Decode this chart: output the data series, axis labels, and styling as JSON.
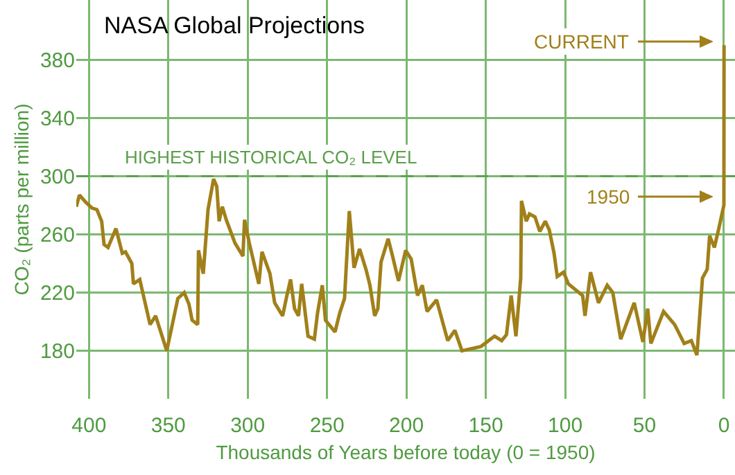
{
  "chart_data": {
    "type": "line",
    "title": "NASA Global Projections",
    "xlabel": "Thousands of Years before today (0 = 1950)",
    "ylabel": "CO₂ (parts per million)",
    "xlim": [
      408,
      -7
    ],
    "xticks": [
      400,
      350,
      300,
      250,
      200,
      150,
      100,
      50,
      0
    ],
    "ylim": [
      147,
      421
    ],
    "yticks": [
      180,
      220,
      260,
      300,
      340,
      380
    ],
    "grid": true,
    "marker": "none",
    "line_style": "solid",
    "series": [
      {
        "color": "#a1801a",
        "x": [
          408,
          406,
          402,
          398,
          395,
          392,
          390.5,
          388,
          383,
          379,
          377,
          373,
          372,
          368,
          361.5,
          358,
          351,
          344,
          340,
          337,
          335,
          331.5,
          331,
          328,
          325,
          321.5,
          319.5,
          318,
          316,
          313.5,
          308,
          303,
          302,
          299,
          293,
          291,
          286,
          283,
          278,
          275.5,
          273,
          270.5,
          268,
          266,
          262,
          258,
          256,
          253,
          251,
          245,
          242,
          239,
          236,
          233,
          229.5,
          225.5,
          223,
          220,
          218,
          216,
          211.5,
          208.5,
          205,
          200.5,
          197,
          193,
          190,
          187,
          181,
          174,
          169.5,
          165,
          153,
          144.5,
          140,
          137,
          134,
          131,
          128,
          127.5,
          124.5,
          122.5,
          119,
          116,
          112.5,
          110,
          107,
          105,
          101,
          98,
          89,
          87.5,
          84,
          79,
          73.5,
          70,
          65,
          56.5,
          51,
          48,
          46,
          38,
          31,
          25,
          20.5,
          17,
          13.5,
          10.5,
          9,
          6,
          3,
          0,
          -0.1
        ],
        "values": [
          279,
          287,
          282,
          278,
          277,
          269,
          253,
          251,
          264,
          247,
          248,
          240,
          226,
          229,
          198,
          204,
          180,
          216,
          220,
          212,
          201,
          198,
          249,
          233,
          277,
          298,
          293,
          269,
          279,
          270,
          254,
          245,
          270,
          254,
          226,
          248,
          233,
          213,
          204,
          217,
          229,
          209,
          204,
          226,
          190,
          188,
          206,
          225,
          201,
          193,
          206,
          216,
          276,
          237,
          250,
          236,
          225,
          204,
          209,
          241,
          257,
          244,
          228,
          249,
          243,
          218,
          225,
          207,
          215,
          187,
          194,
          180,
          183,
          190,
          187,
          191,
          218,
          190,
          230,
          283,
          269,
          274,
          272,
          262,
          269,
          263,
          247,
          231,
          234,
          226,
          218,
          204,
          234,
          213,
          225,
          220,
          188,
          213,
          186,
          209,
          185,
          207,
          198,
          185,
          187,
          177,
          230,
          236,
          259,
          251,
          265,
          280,
          390
        ]
      }
    ],
    "ref_lines": [
      {
        "axis": "y",
        "value": 300,
        "label": "HIGHEST HISTORICAL CO₂ LEVEL",
        "color": "#5a9e4a",
        "line_style": "dashed"
      }
    ],
    "annotations": [
      "CURRENT",
      "1950"
    ]
  }
}
